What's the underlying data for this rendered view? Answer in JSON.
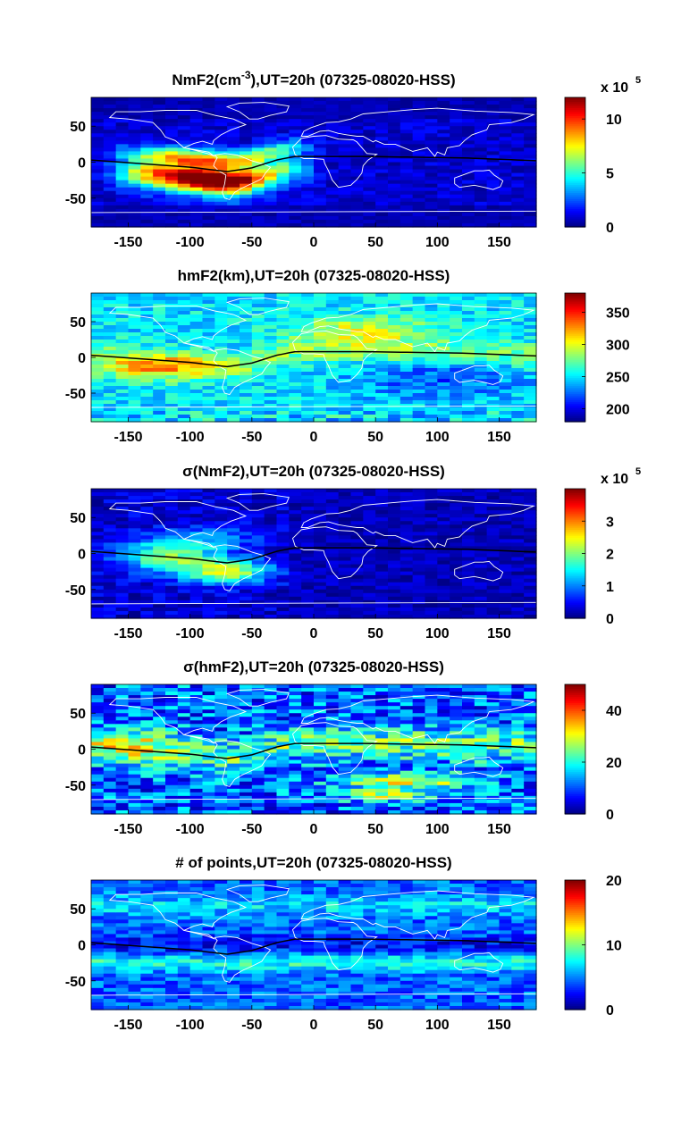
{
  "chart_data": [
    {
      "type": "heatmap",
      "title": "NmF2(cm⁻³),UT=20h (07325-08020-HSS)",
      "title_parts": {
        "pre": "NmF2(cm",
        "sup": "-3",
        "post": "),UT=20h (07325-08020-HSS)"
      },
      "xlabel": "",
      "ylabel": "",
      "xlim": [
        -180,
        180
      ],
      "ylim": [
        -90,
        90
      ],
      "xticks": [
        "-150",
        "-100",
        "-50",
        "0",
        "50",
        "100",
        "150"
      ],
      "yticks": [
        "50",
        "0",
        "-50"
      ],
      "colorbar": {
        "min": 0,
        "max": 12,
        "ticks": [
          "0",
          "5",
          "10"
        ],
        "multiplier": "x 10",
        "exponent": "5"
      },
      "pattern": "nmf2",
      "seed": 11
    },
    {
      "type": "heatmap",
      "title": "hmF2(km),UT=20h (07325-08020-HSS)",
      "title_parts": {
        "pre": "hmF2(km),UT=20h (07325-08020-HSS)",
        "sup": "",
        "post": ""
      },
      "xlabel": "",
      "ylabel": "",
      "xlim": [
        -180,
        180
      ],
      "ylim": [
        -90,
        90
      ],
      "xticks": [
        "-150",
        "-100",
        "-50",
        "0",
        "50",
        "100",
        "150"
      ],
      "yticks": [
        "50",
        "0",
        "-50"
      ],
      "colorbar": {
        "min": 180,
        "max": 380,
        "ticks": [
          "200",
          "250",
          "300",
          "350"
        ],
        "multiplier": "",
        "exponent": ""
      },
      "pattern": "hmf2",
      "seed": 23
    },
    {
      "type": "heatmap",
      "title": "σ(NmF2),UT=20h (07325-08020-HSS)",
      "title_parts": {
        "pre": "σ(NmF2),UT=20h (07325-08020-HSS)",
        "sup": "",
        "post": ""
      },
      "xlabel": "",
      "ylabel": "",
      "xlim": [
        -180,
        180
      ],
      "ylim": [
        -90,
        90
      ],
      "xticks": [
        "-150",
        "-100",
        "-50",
        "0",
        "50",
        "100",
        "150"
      ],
      "yticks": [
        "50",
        "0",
        "-50"
      ],
      "colorbar": {
        "min": 0,
        "max": 4,
        "ticks": [
          "0",
          "1",
          "2",
          "3"
        ],
        "multiplier": "x 10",
        "exponent": "5"
      },
      "pattern": "signmf2",
      "seed": 37
    },
    {
      "type": "heatmap",
      "title": "σ(hmF2),UT=20h (07325-08020-HSS)",
      "title_parts": {
        "pre": "σ(hmF2),UT=20h (07325-08020-HSS)",
        "sup": "",
        "post": ""
      },
      "xlabel": "",
      "ylabel": "",
      "xlim": [
        -180,
        180
      ],
      "ylim": [
        -90,
        90
      ],
      "xticks": [
        "-150",
        "-100",
        "-50",
        "0",
        "50",
        "100",
        "150"
      ],
      "yticks": [
        "50",
        "0",
        "-50"
      ],
      "colorbar": {
        "min": 0,
        "max": 50,
        "ticks": [
          "0",
          "20",
          "40"
        ],
        "multiplier": "",
        "exponent": ""
      },
      "pattern": "sighmf2",
      "seed": 53
    },
    {
      "type": "heatmap",
      "title": "# of points,UT=20h (07325-08020-HSS)",
      "title_parts": {
        "pre": "# of points,UT=20h (07325-08020-HSS)",
        "sup": "",
        "post": ""
      },
      "xlabel": "",
      "ylabel": "",
      "xlim": [
        -180,
        180
      ],
      "ylim": [
        -90,
        90
      ],
      "xticks": [
        "-150",
        "-100",
        "-50",
        "0",
        "50",
        "100",
        "150"
      ],
      "yticks": [
        "50",
        "0",
        "-50"
      ],
      "colorbar": {
        "min": 0,
        "max": 20,
        "ticks": [
          "0",
          "10",
          "20"
        ],
        "multiplier": "",
        "exponent": ""
      },
      "pattern": "points",
      "seed": 71
    }
  ],
  "colors": {
    "coastline": "#ffffff",
    "magnetic_equator": "#000000",
    "colormap": "jet"
  }
}
